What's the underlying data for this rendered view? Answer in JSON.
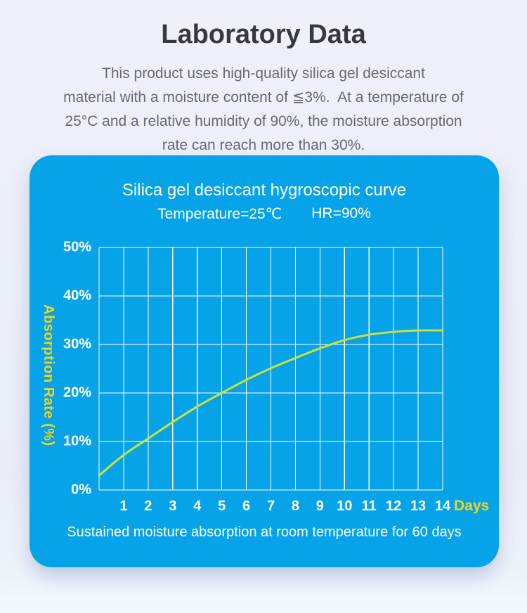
{
  "header": {
    "title": "Laboratory Data",
    "paragraph_lines": [
      "This product uses high-quality silica gel desiccant",
      "material with a moisture content of ≦3%.  At a temperature of",
      "25°C and a relative humidity of 90%, the moisture absorption",
      "rate can reach more than 30%."
    ]
  },
  "chart_data": {
    "type": "line",
    "title": "Silica gel desiccant hygroscopic curve",
    "subtitle_temperature": "Temperature=25℃",
    "subtitle_humidity": "HR=90%",
    "xlabel": "Days",
    "ylabel": "Absorption Rate (%)",
    "caption": "Sustained moisture absorption at room temperature for 60 days",
    "x": [
      0,
      1,
      2,
      3,
      4,
      5,
      6,
      7,
      8,
      9,
      10,
      11,
      12,
      13,
      14
    ],
    "series": [
      {
        "name": "absorption-rate",
        "values": [
          3.0,
          7.2,
          10.6,
          14.0,
          17.2,
          20.0,
          22.7,
          25.1,
          27.2,
          29.2,
          30.9,
          32.0,
          32.6,
          32.9,
          32.9
        ]
      }
    ],
    "xlim": [
      0,
      14
    ],
    "ylim": [
      0,
      50
    ],
    "xticks": [
      1,
      2,
      3,
      4,
      5,
      6,
      7,
      8,
      9,
      10,
      11,
      12,
      13,
      14
    ],
    "yticks": [
      "0%",
      "10%",
      "20%",
      "30%",
      "40%",
      "50%"
    ],
    "grid": true,
    "legend_position": "none"
  },
  "colors": {
    "page_bg": "#eef1f9",
    "card_bg": "#07a3e9",
    "curve": "#c8e23a",
    "accent_yellow": "#f1d41d",
    "grid_line": "#ffffff",
    "tick_text": "#ffffff",
    "title_text": "#38383d",
    "paragraph_text": "#67696f"
  }
}
